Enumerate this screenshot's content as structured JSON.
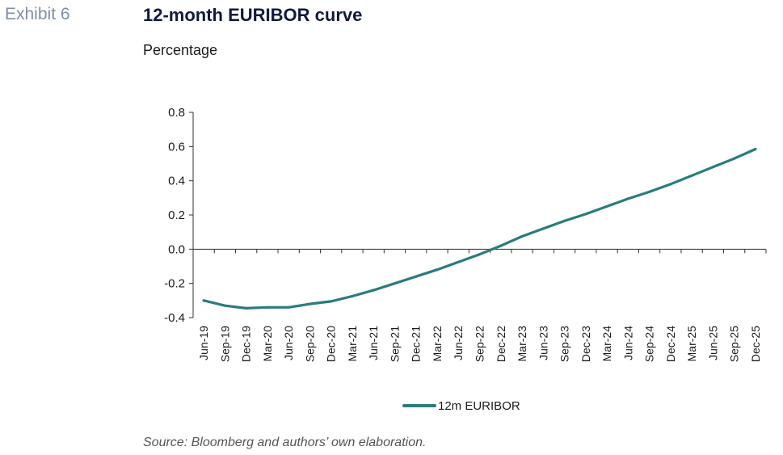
{
  "exhibit_label": "Exhibit 6",
  "title": "12-month EURIBOR curve",
  "subtitle": "Percentage",
  "source": "Source: Bloomberg and authors’ own elaboration.",
  "chart_data": {
    "type": "line",
    "categories": [
      "Jun-19",
      "Sep-19",
      "Dec-19",
      "Mar-20",
      "Jun-20",
      "Sep-20",
      "Dec-20",
      "Mar-21",
      "Jun-21",
      "Sep-21",
      "Dec-21",
      "Mar-22",
      "Jun-22",
      "Sep-22",
      "Dec-22",
      "Mar-23",
      "Jun-23",
      "Sep-23",
      "Dec-23",
      "Mar-24",
      "Jun-24",
      "Sep-24",
      "Dec-24",
      "Mar-25",
      "Jun-25",
      "Sep-25",
      "Dec-25"
    ],
    "series": [
      {
        "name": "12m EURIBOR",
        "color": "#2a7b7e",
        "values": [
          -0.3,
          -0.33,
          -0.345,
          -0.34,
          -0.34,
          -0.32,
          -0.305,
          -0.275,
          -0.24,
          -0.2,
          -0.16,
          -0.12,
          -0.075,
          -0.03,
          0.02,
          0.075,
          0.12,
          0.165,
          0.205,
          0.25,
          0.295,
          0.335,
          0.38,
          0.43,
          0.48,
          0.53,
          0.585
        ]
      }
    ],
    "yticks": [
      "0.8",
      "0.6",
      "0.4",
      "0.2",
      "0.0",
      "-0.2",
      "-0.4"
    ],
    "ylim": [
      -0.4,
      0.8
    ],
    "grid": false,
    "legend_position": "bottom-center"
  }
}
